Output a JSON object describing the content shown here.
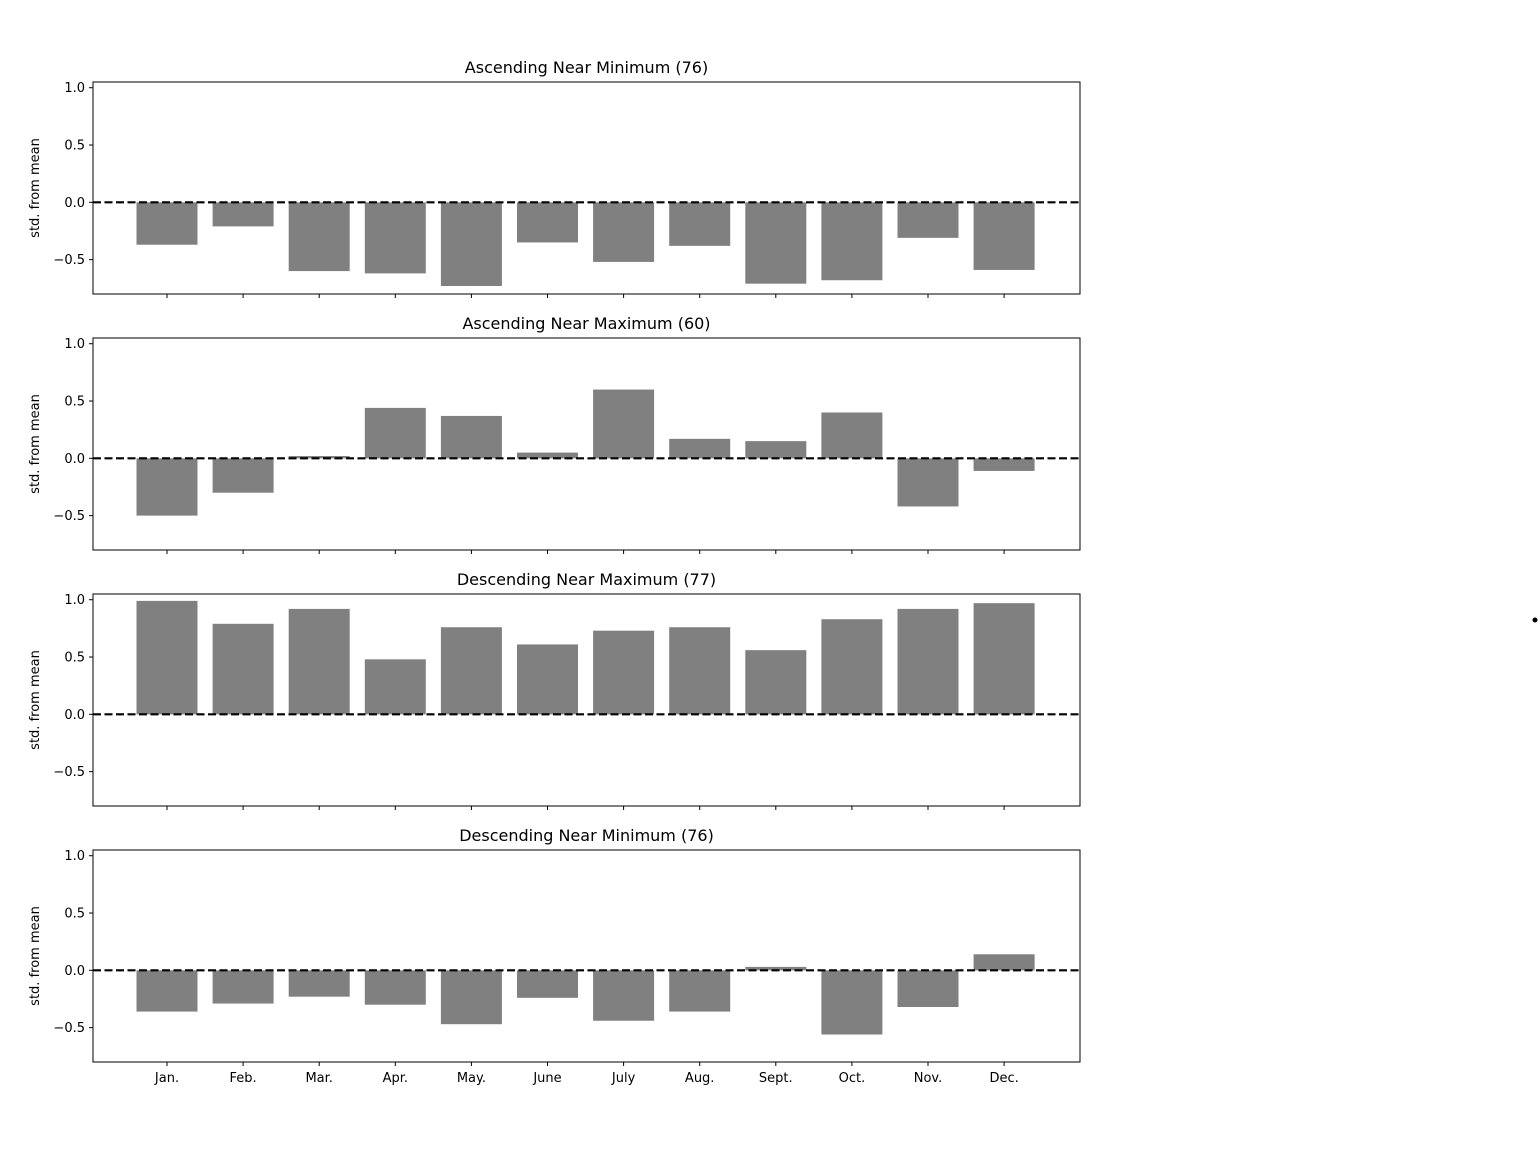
{
  "chart_data": {
    "type": "bar",
    "layout": "4 stacked panels sharing x-axis",
    "categories": [
      "Jan.",
      "Feb.",
      "Mar.",
      "Apr.",
      "May.",
      "June",
      "July",
      "Aug.",
      "Sept.",
      "Oct.",
      "Nov.",
      "Dec."
    ],
    "ylabel": "std. from mean",
    "ylim": [
      -0.8,
      1.05
    ],
    "yticks": [
      "1.0",
      "0.5",
      "0.0",
      "−0.5"
    ],
    "ytick_values": [
      1.0,
      0.5,
      0.0,
      -0.5
    ],
    "bar_color": "#808080",
    "reference_line": {
      "y": 0,
      "style": "dashed",
      "color": "#000000"
    },
    "grid": false,
    "legend": "none",
    "panels": [
      {
        "title": "Ascending Near Minimum (76)",
        "values": [
          -0.37,
          -0.21,
          -0.6,
          -0.62,
          -0.73,
          -0.35,
          -0.52,
          -0.38,
          -0.71,
          -0.68,
          -0.31,
          -0.59
        ]
      },
      {
        "title": "Ascending Near Maximum (60)",
        "values": [
          -0.5,
          -0.3,
          0.02,
          0.44,
          0.37,
          0.05,
          0.6,
          0.17,
          0.15,
          0.4,
          -0.42,
          -0.11
        ]
      },
      {
        "title": "Descending Near Maximum (77)",
        "values": [
          0.99,
          0.79,
          0.92,
          0.48,
          0.76,
          0.61,
          0.73,
          0.76,
          0.56,
          0.83,
          0.92,
          0.97
        ]
      },
      {
        "title": "Descending Near Minimum (76)",
        "values": [
          -0.36,
          -0.29,
          -0.23,
          -0.3,
          -0.47,
          -0.24,
          -0.44,
          -0.36,
          0.03,
          -0.56,
          -0.32,
          0.14
        ]
      }
    ]
  }
}
